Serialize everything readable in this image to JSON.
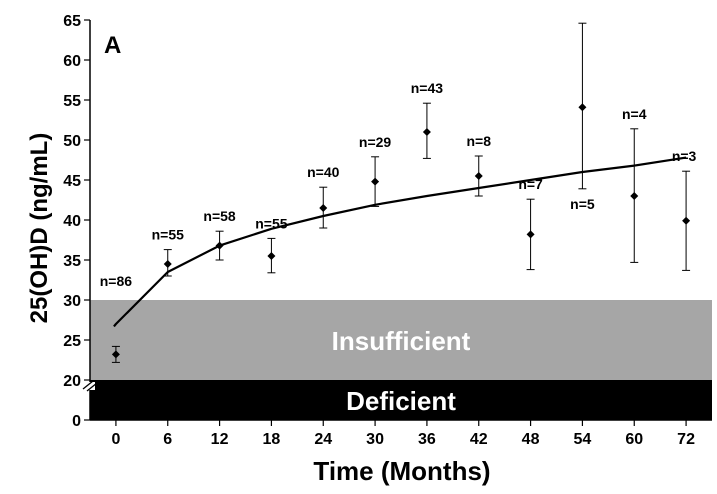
{
  "chart_data": {
    "type": "scatter",
    "panel_label": "A",
    "xlabel": "Time (Months)",
    "ylabel": "25(OH)D (ng/mL)",
    "x_ticks": [
      "0",
      "6",
      "12",
      "18",
      "24",
      "30",
      "36",
      "42",
      "48",
      "54",
      "60",
      "72"
    ],
    "y_ticks": [
      65,
      60,
      55,
      50,
      45,
      40,
      35,
      30,
      25,
      20,
      0
    ],
    "ylim": [
      20,
      65
    ],
    "y_axis_break": true,
    "bands": [
      {
        "label": "Insufficient",
        "from": 20,
        "to": 30,
        "color": "#a6a6a6"
      },
      {
        "label": "Deficient",
        "from": 0,
        "to": 20,
        "color": "#000000"
      }
    ],
    "points": [
      {
        "x": "0",
        "mean": 23.2,
        "lo": 22.2,
        "hi": 24.2,
        "n_label": "n=86"
      },
      {
        "x": "6",
        "mean": 34.5,
        "lo": 33.0,
        "hi": 36.3,
        "n_label": "n=55"
      },
      {
        "x": "12",
        "mean": 36.8,
        "lo": 35.0,
        "hi": 38.6,
        "n_label": "n=58"
      },
      {
        "x": "18",
        "mean": 35.5,
        "lo": 33.4,
        "hi": 37.7,
        "n_label": "n=55"
      },
      {
        "x": "24",
        "mean": 41.5,
        "lo": 39.0,
        "hi": 44.1,
        "n_label": "n=40"
      },
      {
        "x": "30",
        "mean": 44.8,
        "lo": 41.7,
        "hi": 47.9,
        "n_label": "n=29"
      },
      {
        "x": "36",
        "mean": 51.0,
        "lo": 47.7,
        "hi": 54.6,
        "n_label": "n=43"
      },
      {
        "x": "42",
        "mean": 45.5,
        "lo": 43.0,
        "hi": 48.0,
        "n_label": "n=8"
      },
      {
        "x": "48",
        "mean": 38.2,
        "lo": 33.8,
        "hi": 42.6,
        "n_label": "n=7"
      },
      {
        "x": "54",
        "mean": 54.1,
        "lo": 43.9,
        "hi": 64.6,
        "n_label": "n=5"
      },
      {
        "x": "60",
        "mean": 43.0,
        "lo": 34.7,
        "hi": 51.4,
        "n_label": "n=4"
      },
      {
        "x": "72",
        "mean": 39.9,
        "lo": 33.7,
        "hi": 46.1,
        "n_label": "n=3"
      }
    ],
    "trend_line": {
      "type": "logarithmic",
      "values": [
        [
          "0",
          27.0
        ],
        [
          "6",
          33.5
        ],
        [
          "12",
          36.8
        ],
        [
          "18",
          38.9
        ],
        [
          "24",
          40.5
        ],
        [
          "30",
          41.9
        ],
        [
          "36",
          43.0
        ],
        [
          "42",
          44.0
        ],
        [
          "48",
          45.0
        ],
        [
          "54",
          46.0
        ],
        [
          "60",
          46.8
        ],
        [
          "72",
          47.8
        ]
      ]
    },
    "grid": false,
    "legend": "none"
  }
}
